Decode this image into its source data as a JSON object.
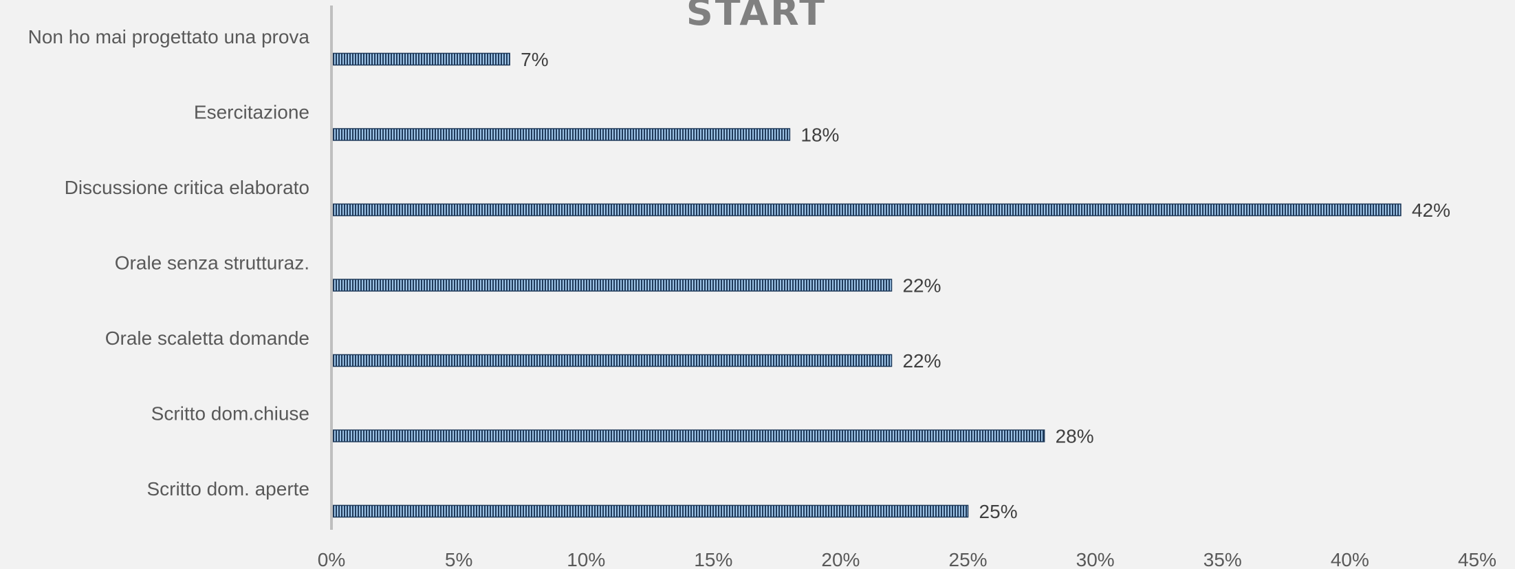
{
  "chart_data": {
    "type": "bar",
    "orientation": "horizontal",
    "title": "START",
    "categories": [
      "Non ho mai progettato una prova",
      "Esercitazione",
      "Discussione critica elaborato",
      "Orale senza strutturaz.",
      "Orale scaletta domande",
      "Scritto dom.chiuse",
      "Scritto dom. aperte"
    ],
    "values": [
      7,
      18,
      42,
      22,
      22,
      28,
      25
    ],
    "data_labels": [
      "7%",
      "18%",
      "42%",
      "22%",
      "22%",
      "28%",
      "25%"
    ],
    "xlim": [
      0,
      45
    ],
    "x_ticks": [
      0,
      5,
      10,
      15,
      20,
      25,
      30,
      35,
      40,
      45
    ],
    "x_tick_labels": [
      "0%",
      "5%",
      "10%",
      "15%",
      "20%",
      "25%",
      "30%",
      "35%",
      "40%",
      "45%"
    ],
    "xlabel": "",
    "ylabel": "",
    "grid": false,
    "legend": "none",
    "bar_fill": "striped",
    "colors": {
      "bar_stripe_dark": "#1f3a5a",
      "bar_stripe_light": "#9dc3e6",
      "bar_border": "#1f3a5a",
      "axis": "#bfbfbf",
      "background": "#f2f2f2",
      "title": "#808080"
    }
  }
}
